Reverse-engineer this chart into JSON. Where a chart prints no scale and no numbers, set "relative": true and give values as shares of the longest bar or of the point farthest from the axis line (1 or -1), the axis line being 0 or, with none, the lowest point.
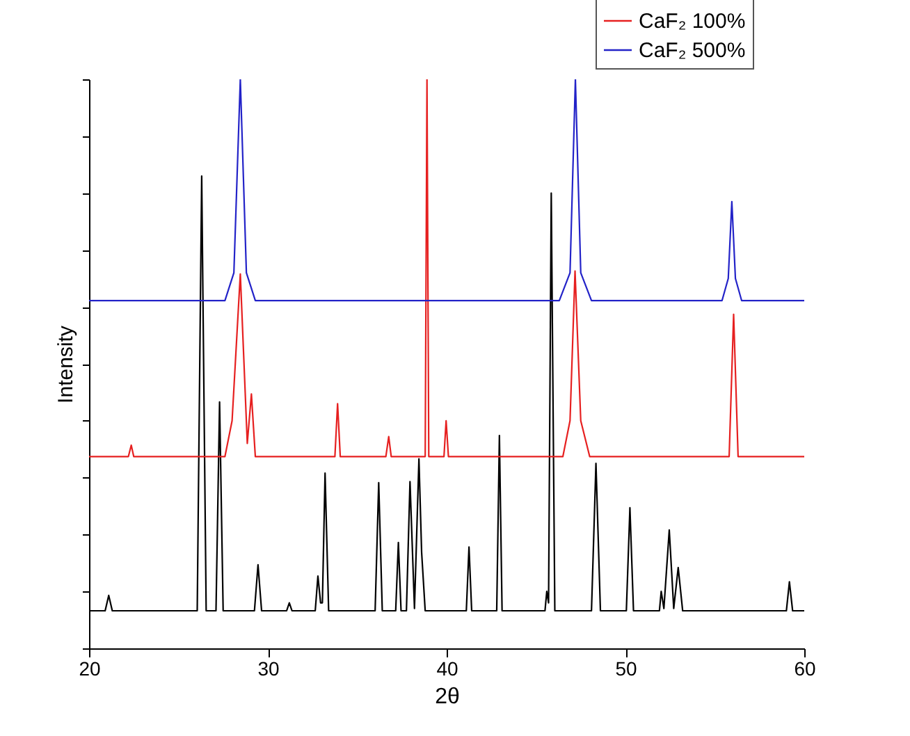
{
  "chart_data": {
    "type": "line",
    "xlabel": "2θ",
    "ylabel": "Intensity",
    "relative": true,
    "xlim": [
      20,
      60
    ],
    "xticks": [
      20,
      30,
      40,
      50,
      60
    ],
    "legend": "top right",
    "grid": false,
    "tick_labels": "x",
    "series": [
      {
        "color": "#000000",
        "x": [
          20,
          20.9,
          21.1,
          21.3,
          26.05,
          26.3,
          26.55,
          27.1,
          27.3,
          27.5,
          29.25,
          29.45,
          29.65,
          31.05,
          31.2,
          31.35,
          32.65,
          32.8,
          32.95,
          33.05,
          33.2,
          33.4,
          36.0,
          36.2,
          36.4,
          37.15,
          37.3,
          37.45,
          37.75,
          37.95,
          38.2,
          38.45,
          38.6,
          38.8,
          41.1,
          41.25,
          41.4,
          42.8,
          42.95,
          43.1,
          45.5,
          45.6,
          45.7,
          45.85,
          46.05,
          48.1,
          48.35,
          48.6,
          50.05,
          50.25,
          50.45,
          51.9,
          52.0,
          52.15,
          52.45,
          52.7,
          52.95,
          53.2,
          59.0,
          59.17,
          59.35,
          60
        ],
        "values": [
          0.066,
          0.066,
          0.093,
          0.066,
          0.066,
          0.83,
          0.066,
          0.066,
          0.433,
          0.066,
          0.066,
          0.147,
          0.066,
          0.066,
          0.08,
          0.066,
          0.066,
          0.127,
          0.08,
          0.08,
          0.308,
          0.066,
          0.066,
          0.291,
          0.066,
          0.066,
          0.186,
          0.066,
          0.066,
          0.293,
          0.07,
          0.333,
          0.169,
          0.066,
          0.066,
          0.178,
          0.066,
          0.066,
          0.374,
          0.066,
          0.066,
          0.1,
          0.08,
          0.8,
          0.066,
          0.066,
          0.325,
          0.066,
          0.066,
          0.247,
          0.066,
          0.066,
          0.1,
          0.07,
          0.208,
          0.07,
          0.142,
          0.066,
          0.066,
          0.117,
          0.066,
          0.066
        ]
      },
      {
        "name": "CaF₂ 100%",
        "color": "#e62020",
        "x": [
          20,
          22.2,
          22.36,
          22.5,
          27.6,
          28.0,
          28.46,
          28.85,
          29.08,
          29.3,
          33.75,
          33.9,
          34.05,
          36.6,
          36.76,
          36.9,
          38.8,
          38.9,
          39.0,
          39.85,
          39.97,
          40.1,
          46.5,
          46.9,
          47.18,
          47.5,
          48.0,
          55.8,
          56.05,
          56.3,
          60
        ],
        "values": [
          0.337,
          0.337,
          0.357,
          0.337,
          0.337,
          0.4,
          0.658,
          0.36,
          0.447,
          0.337,
          0.337,
          0.43,
          0.337,
          0.337,
          0.372,
          0.337,
          0.337,
          1,
          0.337,
          0.337,
          0.4,
          0.337,
          0.337,
          0.4,
          0.663,
          0.4,
          0.337,
          0.337,
          0.587,
          0.337,
          0.337
        ]
      },
      {
        "name": "CaF₂ 500%",
        "color": "#2323c8",
        "x": [
          20,
          27.6,
          28.1,
          28.46,
          28.8,
          29.3,
          46.3,
          46.9,
          47.2,
          47.5,
          48.1,
          55.4,
          55.75,
          55.95,
          56.15,
          56.5,
          60
        ],
        "values": [
          0.611,
          0.611,
          0.66,
          1,
          0.66,
          0.611,
          0.611,
          0.66,
          1,
          0.66,
          0.611,
          0.611,
          0.65,
          0.785,
          0.65,
          0.611,
          0.611
        ]
      }
    ]
  }
}
